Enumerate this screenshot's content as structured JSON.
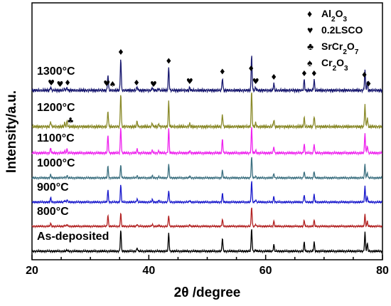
{
  "chart_data": {
    "type": "line",
    "xlabel": "2θ /degree",
    "ylabel": "Intensity/a.u.",
    "xlim": [
      20,
      80
    ],
    "xticks": [
      "20",
      "40",
      "60",
      "80"
    ],
    "legend_position": "top-right",
    "grid": false,
    "peak_positions": [
      23.2,
      25.6,
      26.0,
      33.0,
      35.2,
      38.0,
      40.6,
      41.7,
      43.4,
      47.0,
      52.6,
      57.6,
      58.3,
      61.4,
      66.6,
      68.3,
      77.0,
      77.4
    ],
    "series": [
      {
        "name": "As-deposited",
        "color": "#000000",
        "intensities": [
          0,
          0,
          0.06,
          0,
          0.95,
          0.15,
          0,
          0,
          0.8,
          0,
          0.58,
          1.0,
          0.05,
          0.3,
          0.4,
          0.4,
          0.85,
          0.35
        ]
      },
      {
        "name": "800°C",
        "color": "#b22222",
        "intensities": [
          0.15,
          0.05,
          0.1,
          0.55,
          0.65,
          0.1,
          0.1,
          0.05,
          0.55,
          0.08,
          0.35,
          1.0,
          0.1,
          0.25,
          0.3,
          0.3,
          0.6,
          0.25
        ]
      },
      {
        "name": "900°C",
        "color": "#1a1acc",
        "intensities": [
          0.2,
          0.08,
          0.12,
          0.55,
          0.8,
          0.15,
          0.12,
          0.08,
          0.55,
          0.08,
          0.4,
          1.0,
          0.1,
          0.25,
          0.35,
          0.35,
          0.75,
          0.25
        ]
      },
      {
        "name": "1000°C",
        "color": "#3c7080",
        "intensities": [
          0.15,
          0.05,
          0.1,
          0.55,
          0.6,
          0.1,
          0.1,
          0.05,
          0.65,
          0.08,
          0.35,
          1.0,
          0.08,
          0.2,
          0.3,
          0.3,
          0.65,
          0.25
        ]
      },
      {
        "name": "1100°C",
        "color": "#ee22ee",
        "intensities": [
          0.2,
          0.08,
          0.15,
          0.7,
          1.0,
          0.15,
          0.1,
          0.08,
          0.95,
          0.08,
          0.55,
          1.0,
          0.1,
          0.25,
          0.35,
          0.35,
          0.8,
          0.3
        ]
      },
      {
        "name": "1200°C",
        "color": "#8a8a2a",
        "intensities": [
          0.15,
          0.1,
          0.15,
          0.45,
          0.95,
          0.15,
          0.1,
          0.08,
          0.7,
          0.08,
          0.35,
          1.0,
          0.1,
          0.2,
          0.25,
          0.3,
          0.65,
          0.25
        ]
      },
      {
        "name": "1300°C",
        "color": "#1a1a70",
        "intensities": [
          0.1,
          0.05,
          0.08,
          0.45,
          0.9,
          0.1,
          0.08,
          0.05,
          0.65,
          0.08,
          0.35,
          1.0,
          0.08,
          0.2,
          0.3,
          0.3,
          0.6,
          0.25
        ]
      }
    ],
    "legend": [
      {
        "symbol": "♦",
        "label_parts": [
          [
            "Al",
            "normal"
          ],
          [
            "2",
            "sub"
          ],
          [
            "O",
            "normal"
          ],
          [
            "3",
            "sub"
          ]
        ]
      },
      {
        "symbol": "♥",
        "label_parts": [
          [
            "0.2LSCO",
            "normal"
          ]
        ]
      },
      {
        "symbol": "♣",
        "label_parts": [
          [
            "SrCr",
            "normal"
          ],
          [
            "2",
            "sub"
          ],
          [
            "O",
            "normal"
          ],
          [
            "7",
            "sub"
          ]
        ]
      },
      {
        "symbol": "♠",
        "label_parts": [
          [
            "Cr",
            "normal"
          ],
          [
            "2",
            "sub"
          ],
          [
            "O",
            "normal"
          ],
          [
            "3",
            "sub"
          ]
        ]
      }
    ],
    "phase_markers": [
      {
        "series": "1300°C",
        "symbol": "♥",
        "x": 23.3
      },
      {
        "series": "1300°C",
        "symbol": "♥",
        "x": 24.8
      },
      {
        "series": "1300°C",
        "symbol": "♦",
        "x": 26.1
      },
      {
        "series": "1300°C",
        "symbol": "♥",
        "x": 32.8
      },
      {
        "series": "1300°C",
        "symbol": "♠",
        "x": 33.8
      },
      {
        "series": "1300°C",
        "symbol": "♦",
        "x": 35.2
      },
      {
        "series": "1300°C",
        "symbol": "♦",
        "x": 37.9
      },
      {
        "series": "1300°C",
        "symbol": "♥",
        "x": 40.8
      },
      {
        "series": "1300°C",
        "symbol": "♦",
        "x": 43.4
      },
      {
        "series": "1300°C",
        "symbol": "♥",
        "x": 47.0
      },
      {
        "series": "1300°C",
        "symbol": "♦",
        "x": 52.6
      },
      {
        "series": "1300°C",
        "symbol": "♦",
        "x": 57.5
      },
      {
        "series": "1300°C",
        "symbol": "♥",
        "x": 58.3
      },
      {
        "series": "1300°C",
        "symbol": "♦",
        "x": 61.4
      },
      {
        "series": "1300°C",
        "symbol": "♦",
        "x": 66.6
      },
      {
        "series": "1300°C",
        "symbol": "♦",
        "x": 68.3
      },
      {
        "series": "1300°C",
        "symbol": "♦",
        "x": 76.9
      },
      {
        "series": "1300°C",
        "symbol": "♦",
        "x": 77.6
      },
      {
        "series": "1200°C",
        "symbol": "♣",
        "x": 26.6
      }
    ]
  }
}
